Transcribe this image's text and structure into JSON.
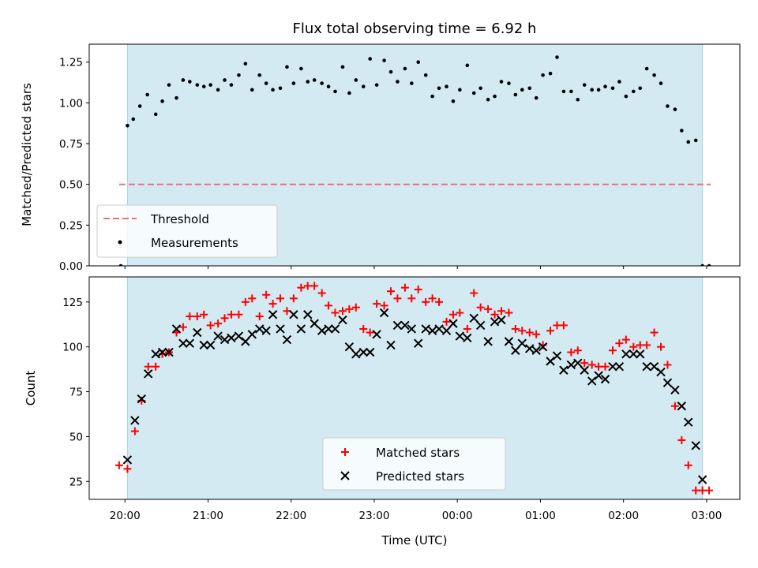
{
  "chart_data": [
    {
      "type": "scatter",
      "title": "Flux total observing time = 6.92 h",
      "xlabel": "",
      "ylabel": "Matched/Predicted stars",
      "ylim": [
        0,
        1.36
      ],
      "yticks": [
        0.0,
        0.25,
        0.5,
        0.75,
        1.0,
        1.25
      ],
      "ytick_labels": [
        "0.00",
        "0.25",
        "0.50",
        "0.75",
        "1.00",
        "1.25"
      ],
      "xlim_hours": [
        19.57,
        27.4
      ],
      "shaded_span_hours": [
        20.03,
        26.95
      ],
      "shade_color": "#d3eaf2",
      "legend": {
        "position": "lower left",
        "entries": [
          "Threshold",
          "Measurements"
        ]
      },
      "threshold": {
        "name": "Threshold",
        "value": 0.5,
        "x_hours": [
          19.93,
          27.05
        ],
        "color": "#f07070",
        "style": "dashed"
      },
      "series": [
        {
          "name": "Measurements",
          "color": "#000000",
          "marker": "dot",
          "x_hours": [
            19.95,
            20.03,
            20.1,
            20.18,
            20.27,
            20.37,
            20.45,
            20.53,
            20.62,
            20.7,
            20.78,
            20.87,
            20.95,
            21.03,
            21.12,
            21.2,
            21.28,
            21.37,
            21.45,
            21.53,
            21.62,
            21.7,
            21.78,
            21.87,
            21.95,
            22.03,
            22.12,
            22.2,
            22.28,
            22.37,
            22.45,
            22.53,
            22.62,
            22.7,
            22.78,
            22.87,
            22.95,
            23.03,
            23.12,
            23.2,
            23.28,
            23.37,
            23.45,
            23.53,
            23.62,
            23.7,
            23.78,
            23.87,
            23.95,
            24.03,
            24.12,
            24.2,
            24.28,
            24.37,
            24.45,
            24.53,
            24.62,
            24.7,
            24.78,
            24.87,
            24.95,
            25.03,
            25.12,
            25.2,
            25.28,
            25.37,
            25.45,
            25.53,
            25.62,
            25.7,
            25.78,
            25.87,
            25.95,
            26.03,
            26.12,
            26.2,
            26.28,
            26.37,
            26.45,
            26.53,
            26.62,
            26.7,
            26.78,
            26.87,
            26.95,
            27.03
          ],
          "y": [
            0.0,
            0.86,
            0.9,
            0.98,
            1.05,
            0.93,
            1.01,
            1.11,
            1.03,
            1.14,
            1.13,
            1.11,
            1.1,
            1.11,
            1.08,
            1.14,
            1.11,
            1.17,
            1.24,
            1.08,
            1.17,
            1.12,
            1.08,
            1.09,
            1.22,
            1.12,
            1.21,
            1.13,
            1.14,
            1.12,
            1.1,
            1.07,
            1.22,
            1.06,
            1.14,
            1.1,
            1.27,
            1.11,
            1.26,
            1.19,
            1.13,
            1.21,
            1.12,
            1.25,
            1.17,
            1.04,
            1.09,
            1.1,
            1.01,
            1.08,
            1.23,
            1.06,
            1.09,
            1.02,
            1.04,
            1.13,
            1.12,
            1.05,
            1.08,
            1.09,
            1.03,
            1.17,
            1.18,
            1.28,
            1.07,
            1.07,
            1.02,
            1.11,
            1.08,
            1.08,
            1.1,
            1.09,
            1.13,
            1.04,
            1.07,
            1.09,
            1.21,
            1.17,
            1.12,
            0.98,
            0.96,
            0.83,
            0.76,
            0.77,
            0.0,
            0.0
          ]
        }
      ]
    },
    {
      "type": "scatter",
      "title": "",
      "xlabel": "Time (UTC)",
      "ylabel": "Count",
      "ylim": [
        15,
        139
      ],
      "yticks": [
        25,
        50,
        75,
        100,
        125
      ],
      "ytick_labels": [
        "25",
        "50",
        "75",
        "100",
        "125"
      ],
      "xlim_hours": [
        19.57,
        27.4
      ],
      "xticks_hours": [
        20,
        21,
        22,
        23,
        24,
        25,
        26,
        27
      ],
      "xtick_labels": [
        "20:00",
        "21:00",
        "22:00",
        "23:00",
        "00:00",
        "01:00",
        "02:00",
        "03:00"
      ],
      "shaded_span_hours": [
        20.03,
        26.95
      ],
      "shade_color": "#d3eaf2",
      "legend": {
        "position": "lower center",
        "entries": [
          "Matched stars",
          "Predicted stars"
        ]
      },
      "series": [
        {
          "name": "Matched stars",
          "color": "#ff0000",
          "marker": "plus",
          "x_hours": [
            19.93,
            20.03,
            20.12,
            20.2,
            20.28,
            20.37,
            20.45,
            20.53,
            20.62,
            20.7,
            20.78,
            20.87,
            20.95,
            21.03,
            21.12,
            21.2,
            21.28,
            21.37,
            21.45,
            21.53,
            21.62,
            21.7,
            21.78,
            21.87,
            21.95,
            22.03,
            22.12,
            22.2,
            22.28,
            22.37,
            22.45,
            22.53,
            22.62,
            22.7,
            22.78,
            22.87,
            22.95,
            23.03,
            23.12,
            23.2,
            23.28,
            23.37,
            23.45,
            23.53,
            23.62,
            23.7,
            23.78,
            23.87,
            23.95,
            24.03,
            24.12,
            24.2,
            24.28,
            24.37,
            24.45,
            24.53,
            24.62,
            24.7,
            24.78,
            24.87,
            24.95,
            25.03,
            25.12,
            25.2,
            25.28,
            25.37,
            25.45,
            25.53,
            25.62,
            25.7,
            25.78,
            25.87,
            25.95,
            26.03,
            26.12,
            26.2,
            26.28,
            26.37,
            26.45,
            26.53,
            26.62,
            26.7,
            26.78,
            26.87,
            26.95,
            27.03
          ],
          "y": [
            34,
            32,
            53,
            70,
            89,
            89,
            96,
            97,
            108,
            111,
            117,
            117,
            118,
            112,
            113,
            116,
            118,
            118,
            125,
            127,
            117,
            129,
            124,
            127,
            120,
            127,
            133,
            134,
            134,
            130,
            123,
            119,
            120,
            121,
            122,
            110,
            108,
            124,
            123,
            131,
            127,
            133,
            127,
            132,
            125,
            127,
            125,
            114,
            118,
            119,
            110,
            130,
            122,
            121,
            118,
            120,
            119,
            110,
            109,
            108,
            107,
            101,
            109,
            112,
            112,
            97,
            98,
            91,
            90,
            89,
            89,
            98,
            102,
            104,
            100,
            101,
            101,
            108,
            100,
            90,
            67,
            48,
            34,
            20,
            20,
            20
          ]
        },
        {
          "name": "Predicted stars",
          "color": "#000000",
          "marker": "x",
          "x_hours": [
            20.03,
            20.12,
            20.2,
            20.28,
            20.37,
            20.45,
            20.53,
            20.62,
            20.7,
            20.78,
            20.87,
            20.95,
            21.03,
            21.12,
            21.2,
            21.28,
            21.37,
            21.45,
            21.53,
            21.62,
            21.7,
            21.78,
            21.87,
            21.95,
            22.03,
            22.12,
            22.2,
            22.28,
            22.37,
            22.45,
            22.53,
            22.62,
            22.7,
            22.78,
            22.87,
            22.95,
            23.03,
            23.12,
            23.2,
            23.28,
            23.37,
            23.45,
            23.53,
            23.62,
            23.7,
            23.78,
            23.87,
            23.95,
            24.03,
            24.12,
            24.2,
            24.28,
            24.37,
            24.45,
            24.53,
            24.62,
            24.7,
            24.78,
            24.87,
            24.95,
            25.03,
            25.12,
            25.2,
            25.28,
            25.37,
            25.45,
            25.53,
            25.62,
            25.7,
            25.78,
            25.87,
            25.95,
            26.03,
            26.12,
            26.2,
            26.28,
            26.37,
            26.45,
            26.53,
            26.62,
            26.7,
            26.78,
            26.87,
            26.95
          ],
          "y": [
            37,
            59,
            71,
            85,
            96,
            97,
            97,
            110,
            102,
            102,
            108,
            101,
            101,
            106,
            104,
            105,
            106,
            103,
            107,
            110,
            109,
            118,
            110,
            104,
            118,
            110,
            118,
            113,
            109,
            110,
            110,
            115,
            100,
            96,
            97,
            97,
            107,
            119,
            101,
            112,
            112,
            110,
            102,
            110,
            109,
            110,
            109,
            113,
            106,
            105,
            116,
            112,
            103,
            114,
            115,
            103,
            98,
            102,
            99,
            98,
            100,
            92,
            95,
            87,
            90,
            91,
            87,
            81,
            84,
            82,
            89,
            89,
            96,
            96,
            96,
            89,
            89,
            86,
            80,
            76,
            67,
            58,
            45,
            26
          ]
        }
      ]
    }
  ]
}
